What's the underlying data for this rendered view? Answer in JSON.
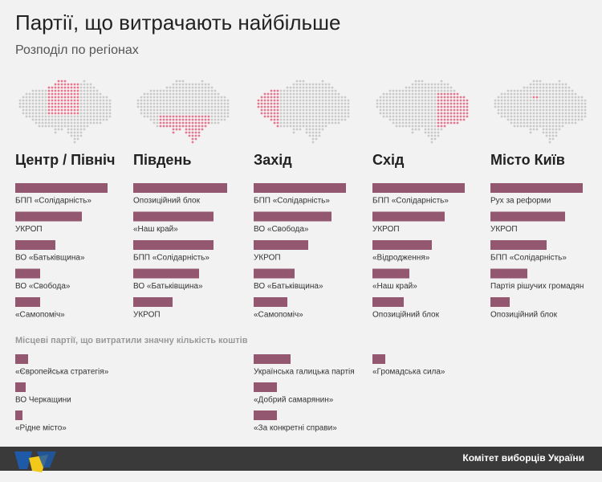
{
  "title": "Партії, що витрачають найбільше",
  "subtitle": "Розподіл по регіонах",
  "local_title": "Місцеві партії, що витратили значну кількість коштів",
  "footer": "Комітет виборців України",
  "chart_data": [
    {
      "type": "bar",
      "title": "Центр / Північ",
      "color": "#93576f",
      "categories": [
        "БПП «Солідарність»",
        "УКРОП",
        "ВО «Батьківщина»",
        "ВО «Свобода»",
        "«Самопоміч»"
      ],
      "values": [
        115,
        83,
        50,
        31,
        31
      ]
    },
    {
      "type": "bar",
      "title": "Південь",
      "color": "#93576f",
      "categories": [
        "Опозиційний блок",
        "«Наш край»",
        "БПП «Солідарність»",
        "ВО «Батьківщина»",
        "УКРОП"
      ],
      "values": [
        117,
        100,
        100,
        82,
        49
      ]
    },
    {
      "type": "bar",
      "title": "Захід",
      "color": "#93576f",
      "categories": [
        "БПП «Солідарність»",
        "ВО «Свобода»",
        "УКРОП",
        "ВО «Батьківщина»",
        "«Самопоміч»"
      ],
      "values": [
        115,
        97,
        68,
        51,
        42
      ]
    },
    {
      "type": "bar",
      "title": "Схід",
      "color": "#93576f",
      "categories": [
        "БПП «Солідарність»",
        "УКРОП",
        "«Відродження»",
        "«Наш край»",
        "Опозиційний блок"
      ],
      "values": [
        115,
        90,
        74,
        46,
        39
      ]
    },
    {
      "type": "bar",
      "title": "Місто Київ",
      "color": "#93576f",
      "categories": [
        "Рух за реформи",
        "УКРОП",
        "БПП «Солідарність»",
        "Партія рішучих громадян",
        "Опозиційний блок"
      ],
      "values": [
        115,
        93,
        70,
        46,
        24
      ]
    },
    {
      "type": "bar",
      "color": "#93576f",
      "categories": [
        "«Європейська стратегія»",
        "ВО Черкащини",
        "«Рідне місто»"
      ],
      "values": [
        16,
        13,
        9
      ]
    },
    {
      "type": "bar",
      "color": "#93576f",
      "categories": [
        "Українська галицька партія",
        "«Добрий самарянин»",
        "«За конкретні справи»"
      ],
      "values": [
        46,
        29,
        29
      ]
    },
    {
      "type": "bar",
      "color": "#93576f",
      "categories": [
        "«Громадська сила»"
      ],
      "values": [
        16
      ]
    }
  ]
}
